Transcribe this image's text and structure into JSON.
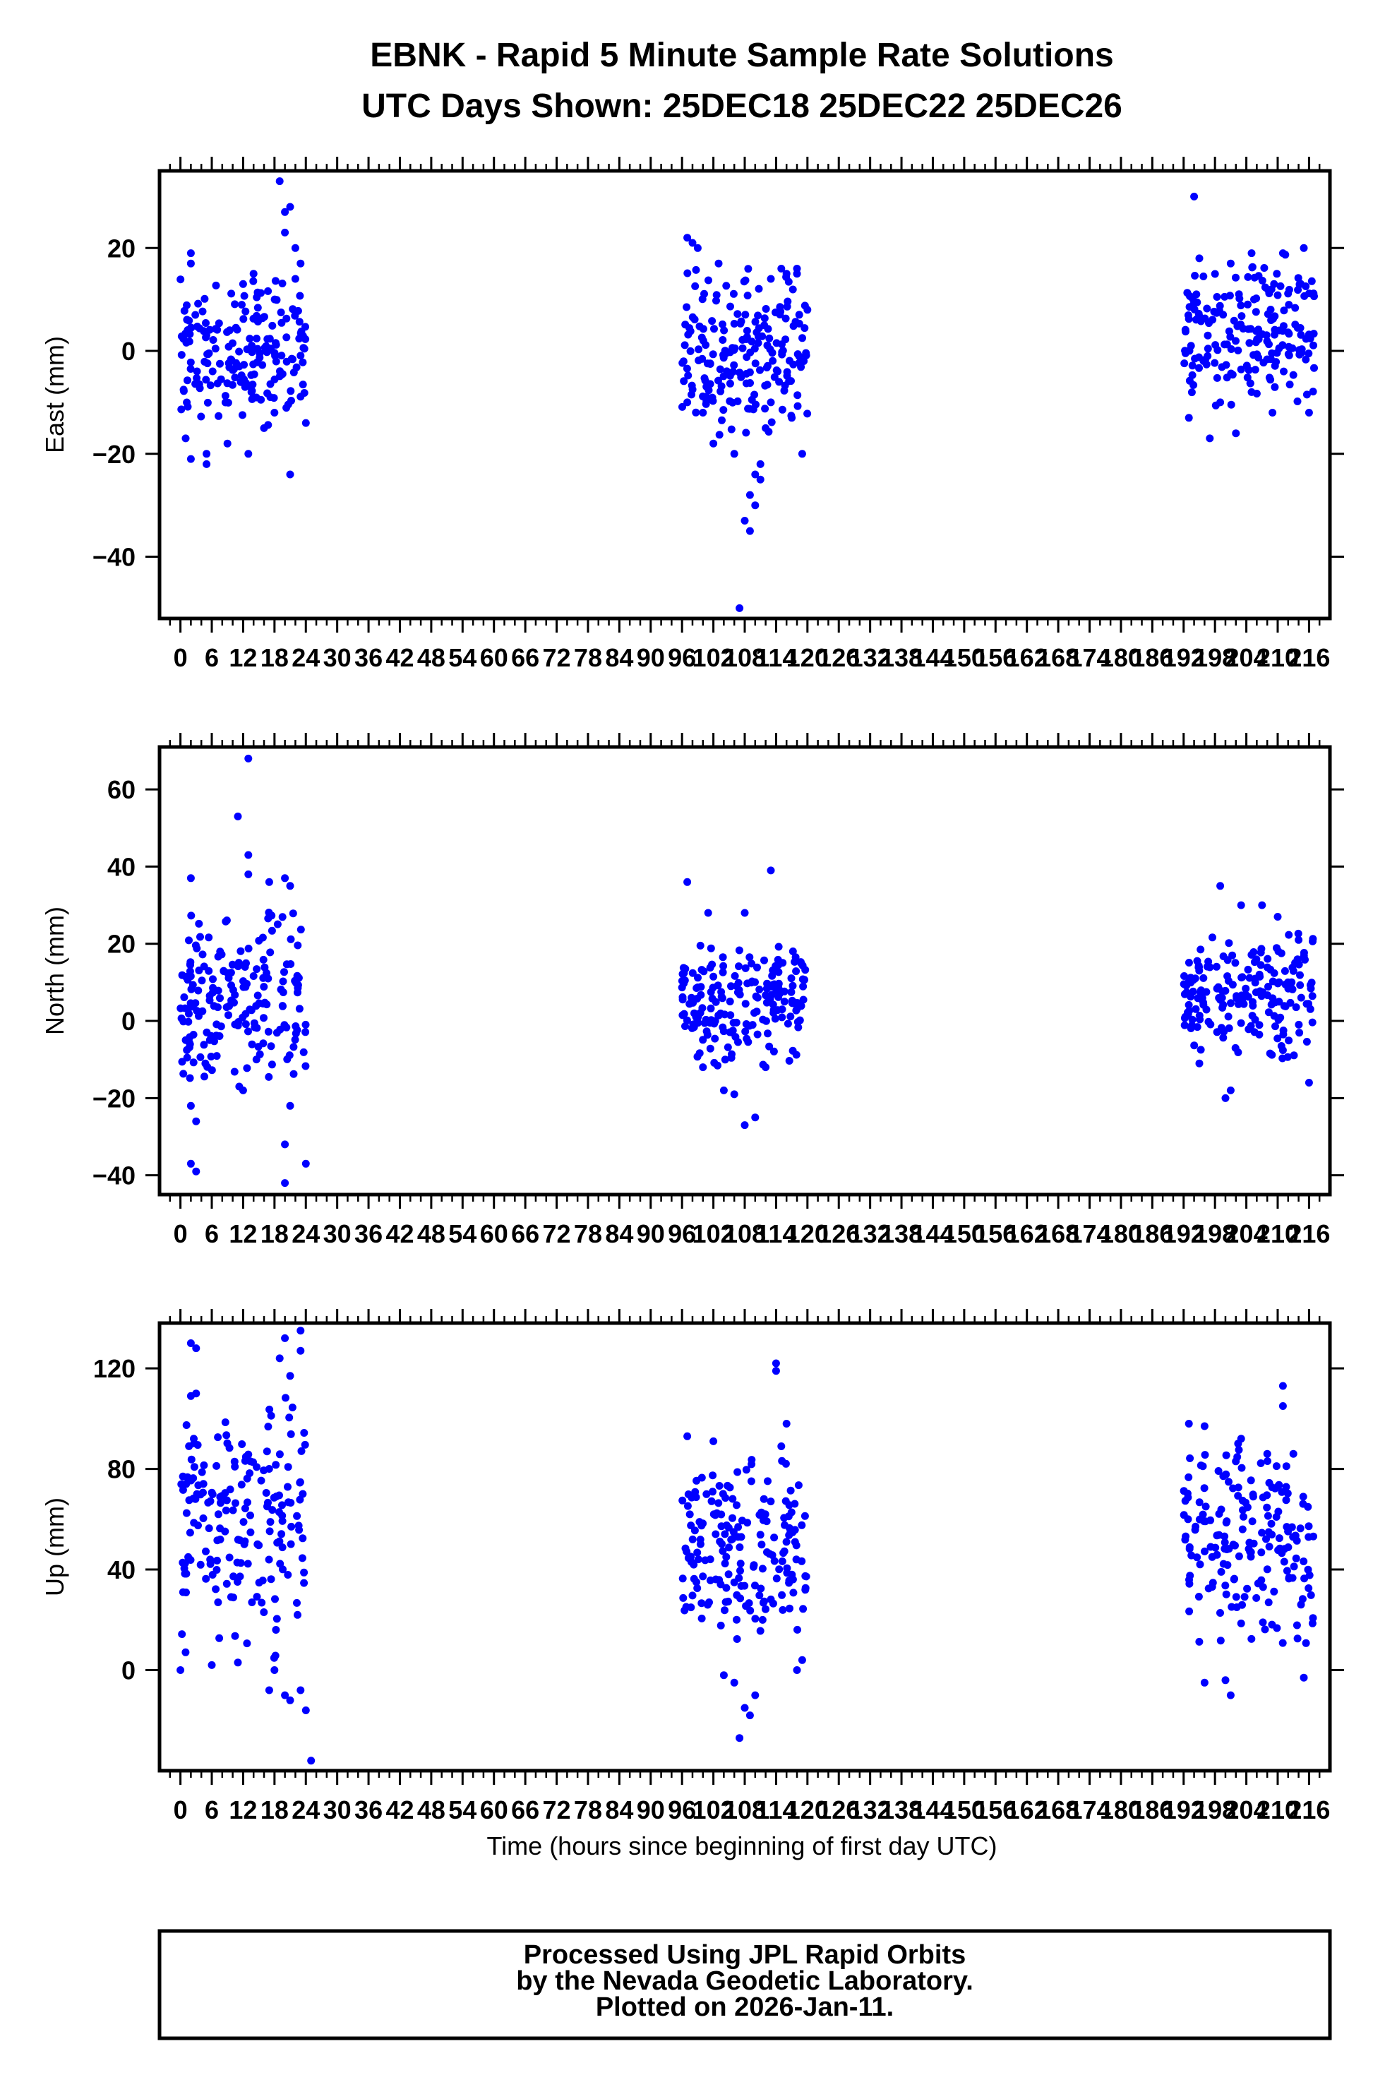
{
  "title_line1": "EBNK - Rapid 5 Minute Sample Rate Solutions",
  "title_line2": "UTC Days Shown:  25DEC18 25DEC22 25DEC26",
  "xlabel": "Time (hours since beginning of first day UTC)",
  "footer": {
    "line1": "Processed Using JPL Rapid Orbits",
    "line2": "by the Nevada Geodetic Laboratory.",
    "line3": "Plotted on 2026-Jan-11."
  },
  "colors": {
    "points": "#0000ff",
    "frame": "#000000",
    "background": "#ffffff"
  },
  "chart_data": [
    {
      "type": "scatter",
      "ylabel": "East (mm)",
      "xlim": [
        -4,
        220
      ],
      "ylim": [
        -52,
        35
      ],
      "x_ticks": [
        0,
        6,
        12,
        18,
        24,
        30,
        36,
        42,
        48,
        54,
        60,
        66,
        72,
        78,
        84,
        90,
        96,
        102,
        108,
        114,
        120,
        126,
        132,
        138,
        144,
        150,
        156,
        162,
        168,
        174,
        180,
        186,
        192,
        198,
        204,
        210,
        216
      ],
      "y_ticks": [
        -40,
        -20,
        0,
        20
      ],
      "grid": false,
      "series": [
        {
          "color": "#0000ff",
          "clusters": [
            {
              "x_range": [
                0,
                24
              ],
              "center": 0,
              "spread": 7,
              "points": [
                [
                  2,
                  19
                ],
                [
                  2,
                  17
                ],
                [
                  19,
                  33
                ],
                [
                  21,
                  28
                ],
                [
                  20,
                  27
                ],
                [
                  22,
                  20
                ],
                [
                  23,
                  17
                ],
                [
                  20,
                  23
                ],
                [
                  1,
                  -17
                ],
                [
                  2,
                  -21
                ],
                [
                  5,
                  -22
                ],
                [
                  5,
                  -20
                ],
                [
                  13,
                  -20
                ],
                [
                  9,
                  -18
                ],
                [
                  16,
                  -15
                ],
                [
                  21,
                  -24
                ],
                [
                  24,
                  -14
                ],
                [
                  18,
                  -12
                ],
                [
                  22,
                  14
                ],
                [
                  12,
                  13
                ],
                [
                  14,
                  15
                ]
              ]
            },
            {
              "x_range": [
                96,
                120
              ],
              "center": 0,
              "spread": 8,
              "points": [
                [
                  97,
                  22
                ],
                [
                  98,
                  21
                ],
                [
                  99,
                  20
                ],
                [
                  103,
                  17
                ],
                [
                  107,
                  -50
                ],
                [
                  106,
                  -20
                ],
                [
                  109,
                  -28
                ],
                [
                  108,
                  -33
                ],
                [
                  109,
                  -35
                ],
                [
                  110,
                  -30
                ],
                [
                  111,
                  -25
                ],
                [
                  111,
                  -22
                ],
                [
                  110,
                  -24
                ],
                [
                  112,
                  -15
                ],
                [
                  113,
                  -10
                ],
                [
                  116,
                  15
                ],
                [
                  118,
                  16
                ],
                [
                  119,
                  -20
                ],
                [
                  117,
                  -13
                ],
                [
                  97,
                  -10
                ],
                [
                  100,
                  -12
                ],
                [
                  102,
                  -18
                ],
                [
                  113,
                  14
                ],
                [
                  115,
                  16
                ],
                [
                  118,
                  15
                ],
                [
                  120,
                  8
                ]
              ]
            },
            {
              "x_range": [
                192,
                217
              ],
              "center": 4,
              "spread": 7,
              "points": [
                [
                  194,
                  30
                ],
                [
                  195,
                  18
                ],
                [
                  201,
                  17
                ],
                [
                  205,
                  19
                ],
                [
                  211,
                  19
                ],
                [
                  215,
                  20
                ],
                [
                  193,
                  -13
                ],
                [
                  197,
                  -17
                ],
                [
                  202,
                  -16
                ],
                [
                  209,
                  -12
                ],
                [
                  216,
                  -12
                ],
                [
                  199,
                  -10
                ],
                [
                  205,
                  -8
                ]
              ]
            }
          ]
        }
      ]
    },
    {
      "type": "scatter",
      "ylabel": "North (mm)",
      "xlim": [
        -4,
        220
      ],
      "ylim": [
        -45,
        71
      ],
      "x_ticks": [
        0,
        6,
        12,
        18,
        24,
        30,
        36,
        42,
        48,
        54,
        60,
        66,
        72,
        78,
        84,
        90,
        96,
        102,
        108,
        114,
        120,
        126,
        132,
        138,
        144,
        150,
        156,
        162,
        168,
        174,
        180,
        186,
        192,
        198,
        204,
        210,
        216
      ],
      "y_ticks": [
        -40,
        -20,
        0,
        20,
        40,
        60
      ],
      "grid": false,
      "series": [
        {
          "color": "#0000ff",
          "clusters": [
            {
              "x_range": [
                0,
                24
              ],
              "center": 5,
              "spread": 11,
              "points": [
                [
                  13,
                  68
                ],
                [
                  11,
                  53
                ],
                [
                  13,
                  43
                ],
                [
                  13,
                  38
                ],
                [
                  2,
                  37
                ],
                [
                  17,
                  36
                ],
                [
                  20,
                  37
                ],
                [
                  21,
                  35
                ],
                [
                  2,
                  -37
                ],
                [
                  3,
                  -39
                ],
                [
                  20,
                  -42
                ],
                [
                  24,
                  -37
                ],
                [
                  20,
                  -32
                ],
                [
                  3,
                  -26
                ],
                [
                  2,
                  -22
                ],
                [
                  12,
                  -18
                ],
                [
                  21,
                  -22
                ]
              ]
            },
            {
              "x_range": [
                96,
                120
              ],
              "center": 5,
              "spread": 8,
              "points": [
                [
                  97,
                  36
                ],
                [
                  113,
                  39
                ],
                [
                  101,
                  28
                ],
                [
                  108,
                  28
                ],
                [
                  110,
                  -25
                ],
                [
                  108,
                  -27
                ],
                [
                  106,
                  -19
                ],
                [
                  104,
                  -18
                ],
                [
                  112,
                  -12
                ],
                [
                  100,
                  -12
                ]
              ]
            },
            {
              "x_range": [
                192,
                217
              ],
              "center": 7,
              "spread": 8,
              "points": [
                [
                  199,
                  35
                ],
                [
                  203,
                  30
                ],
                [
                  207,
                  30
                ],
                [
                  210,
                  27
                ],
                [
                  216,
                  -16
                ],
                [
                  200,
                  -20
                ],
                [
                  201,
                  -18
                ],
                [
                  195,
                  -11
                ],
                [
                  214,
                  21
                ]
              ]
            }
          ]
        }
      ]
    },
    {
      "type": "scatter",
      "ylabel": "Up (mm)",
      "xlim": [
        -4,
        220
      ],
      "ylim": [
        -40,
        138
      ],
      "x_ticks": [
        0,
        6,
        12,
        18,
        24,
        30,
        36,
        42,
        48,
        54,
        60,
        66,
        72,
        78,
        84,
        90,
        96,
        102,
        108,
        114,
        120,
        126,
        132,
        138,
        144,
        150,
        156,
        162,
        168,
        174,
        180,
        186,
        192,
        198,
        204,
        210,
        216
      ],
      "y_ticks": [
        0,
        40,
        80,
        120
      ],
      "grid": false,
      "series": [
        {
          "color": "#0000ff",
          "clusters": [
            {
              "x_range": [
                0,
                24
              ],
              "center": 57,
              "spread": 25,
              "points": [
                [
                  0,
                  0
                ],
                [
                  2,
                  130
                ],
                [
                  3,
                  128
                ],
                [
                  20,
                  132
                ],
                [
                  23,
                  135
                ],
                [
                  23,
                  127
                ],
                [
                  19,
                  124
                ],
                [
                  21,
                  117
                ],
                [
                  2,
                  109
                ],
                [
                  3,
                  110
                ],
                [
                  20,
                  -10
                ],
                [
                  21,
                  -12
                ],
                [
                  23,
                  -8
                ],
                [
                  24,
                  -16
                ],
                [
                  25,
                  -36
                ],
                [
                  17,
                  -8
                ],
                [
                  18,
                  0
                ],
                [
                  11,
                  3
                ],
                [
                  6,
                  2
                ]
              ]
            },
            {
              "x_range": [
                96,
                120
              ],
              "center": 48,
              "spread": 17,
              "points": [
                [
                  114,
                  122
                ],
                [
                  114,
                  119
                ],
                [
                  97,
                  93
                ],
                [
                  102,
                  91
                ],
                [
                  104,
                  -2
                ],
                [
                  107,
                  -27
                ],
                [
                  108,
                  -15
                ],
                [
                  109,
                  -18
                ],
                [
                  110,
                  -10
                ],
                [
                  106,
                  -5
                ],
                [
                  118,
                  0
                ],
                [
                  119,
                  4
                ],
                [
                  116,
                  98
                ],
                [
                  115,
                  89
                ]
              ]
            },
            {
              "x_range": [
                192,
                217
              ],
              "center": 52,
              "spread": 20,
              "points": [
                [
                  193,
                  98
                ],
                [
                  196,
                  97
                ],
                [
                  203,
                  92
                ],
                [
                  211,
                  113
                ],
                [
                  211,
                  105
                ],
                [
                  215,
                  -3
                ],
                [
                  196,
                  -5
                ],
                [
                  201,
                  -10
                ],
                [
                  200,
                  -4
                ],
                [
                  213,
                  86
                ],
                [
                  208,
                  86
                ]
              ]
            }
          ]
        }
      ]
    }
  ]
}
